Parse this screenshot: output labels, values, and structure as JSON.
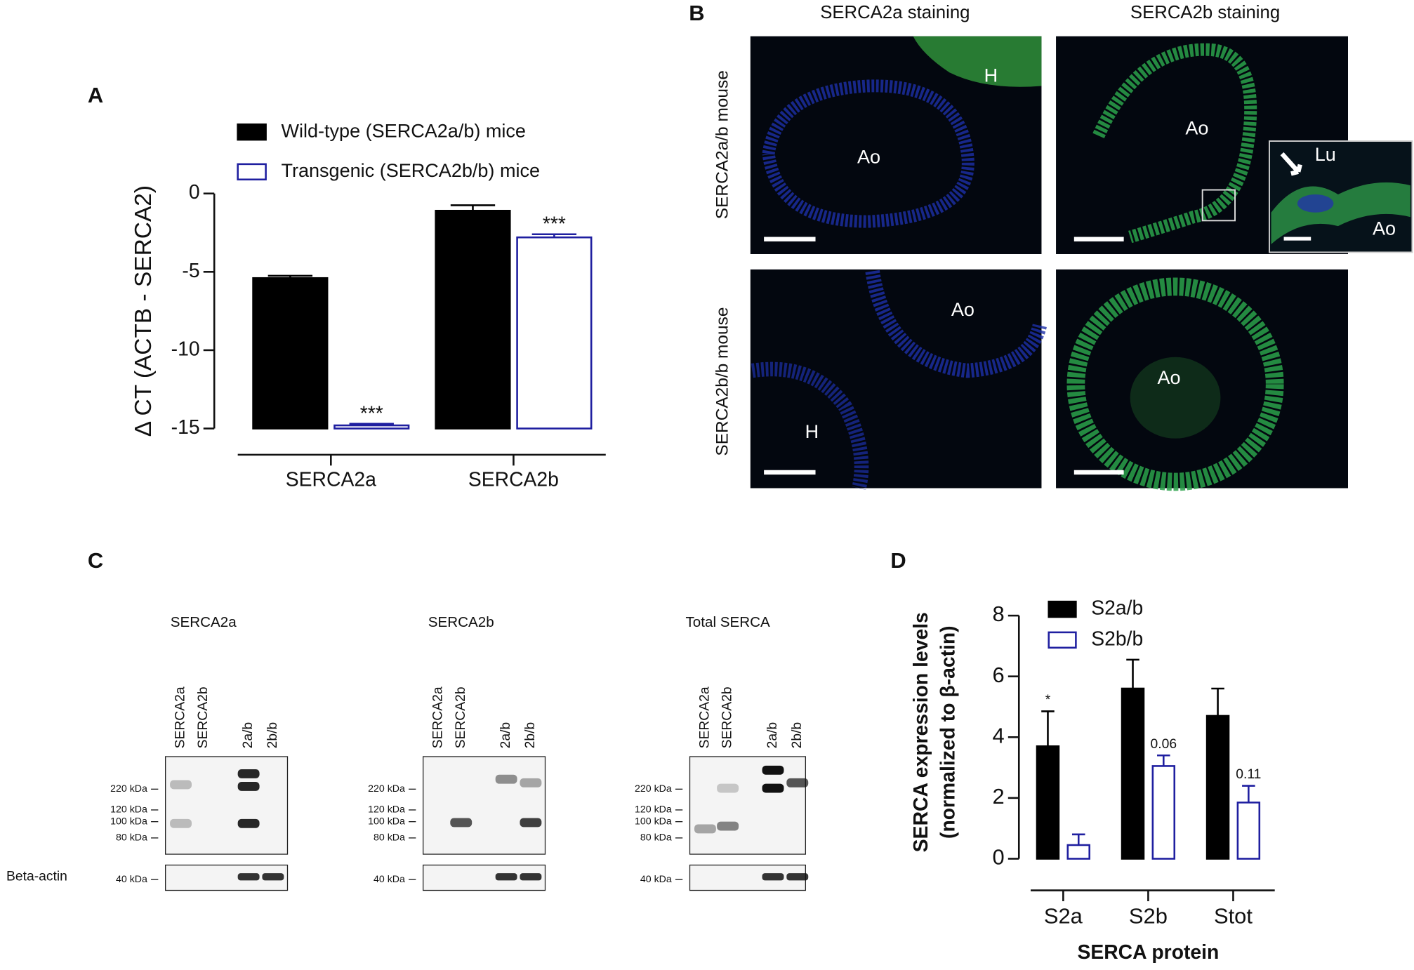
{
  "chart_data": [
    {
      "type": "bar",
      "label": "A",
      "ylabel": "Δ CT (ACTB - SERCA2)",
      "categories": [
        "SERCA2a",
        "SERCA2b"
      ],
      "series": [
        {
          "name": "Wild-type (SERCA2a/b) mice",
          "color": "#000000",
          "fill": "#000000",
          "values": [
            -5.4,
            -1.1
          ],
          "errors": [
            0.15,
            0.35
          ]
        },
        {
          "name": "Transgenic (SERCA2b/b) mice",
          "color": "#1f1fa0",
          "fill": "#ffffff",
          "values": [
            -14.8,
            -2.8
          ],
          "errors": [
            0.1,
            0.2
          ],
          "annotations": [
            "***",
            "***"
          ]
        }
      ],
      "ylim": [
        -15,
        0
      ],
      "yticks": [
        0,
        -5,
        -10,
        -15
      ]
    },
    {
      "type": "bar",
      "label": "D",
      "ylabel": [
        "SERCA expression levels",
        "(normalized to β-actin)"
      ],
      "xlabel": "SERCA protein",
      "categories": [
        "S2a",
        "S2b",
        "Stot"
      ],
      "series": [
        {
          "name": "S2a/b",
          "color": "#000000",
          "fill": "#000000",
          "values": [
            3.7,
            5.6,
            4.7
          ],
          "errors": [
            1.15,
            0.95,
            0.9
          ],
          "annotations": [
            "*",
            null,
            null
          ]
        },
        {
          "name": "S2b/b",
          "color": "#1f1fa0",
          "fill": "#ffffff",
          "values": [
            0.45,
            3.05,
            1.85
          ],
          "errors": [
            0.35,
            0.35,
            0.55
          ],
          "annotations": [
            null,
            "0.06",
            "0.11"
          ]
        }
      ],
      "ylim": [
        0,
        8
      ],
      "yticks": [
        0,
        2,
        4,
        6,
        8
      ]
    }
  ],
  "panel_b": {
    "label": "B",
    "columns": [
      "SERCA2a staining",
      "SERCA2b staining"
    ],
    "rows": [
      "SERCA2a/b mouse",
      "SERCA2b/b mouse"
    ],
    "image_labels": [
      "Ao",
      "H",
      "Ao",
      "Lu",
      "Ao",
      "Ao",
      "H",
      "Ao"
    ]
  },
  "panel_c": {
    "label": "C",
    "row_label": "Beta-actin",
    "blots": [
      {
        "title": "SERCA2a",
        "lanes": [
          "SERCA2a",
          "SERCA2b",
          "2a/b",
          "2b/b"
        ],
        "markers": [
          "220 kDa",
          "120 kDa",
          "100 kDa",
          "80 kDa"
        ],
        "loading_marker": "40 kDa"
      },
      {
        "title": "SERCA2b",
        "lanes": [
          "SERCA2a",
          "SERCA2b",
          "2a/b",
          "2b/b"
        ],
        "markers": [
          "220 kDa",
          "120 kDa",
          "100 kDa",
          "80 kDa"
        ],
        "loading_marker": "40 kDa"
      },
      {
        "title": "Total SERCA",
        "lanes": [
          "SERCA2a",
          "SERCA2b",
          "2a/b",
          "2b/b"
        ],
        "markers": [
          "220 kDa",
          "120 kDa",
          "100 kDa",
          "80 kDa"
        ],
        "loading_marker": "40 kDa"
      }
    ]
  }
}
